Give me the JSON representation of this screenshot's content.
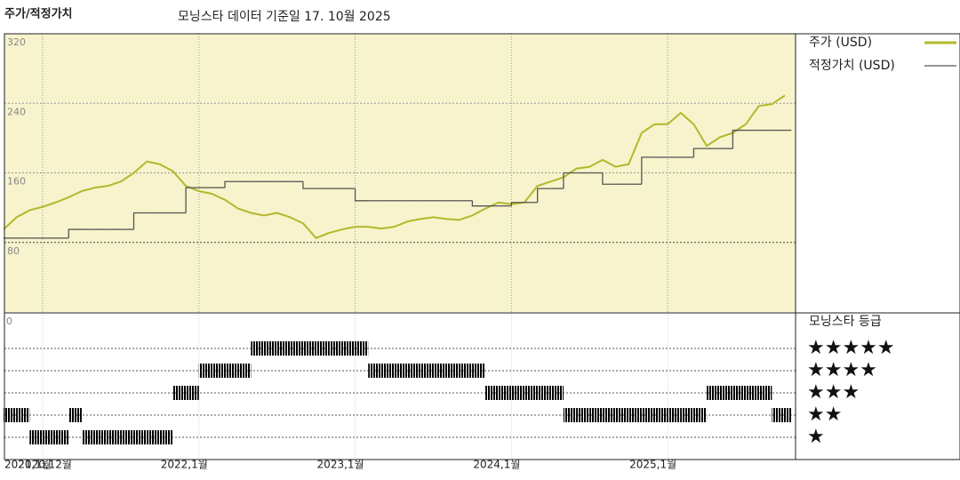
{
  "chart_data": [
    {
      "type": "line",
      "title": "주가/적정가치",
      "subtitle": "모닝스타 데이터 기준일 17. 10월 2025",
      "x": [
        "2020-10",
        "2020-11",
        "2020-12",
        "2021-01",
        "2021-02",
        "2021-03",
        "2021-04",
        "2021-05",
        "2021-06",
        "2021-07",
        "2021-08",
        "2021-09",
        "2021-10",
        "2021-11",
        "2021-12",
        "2022-01",
        "2022-02",
        "2022-03",
        "2022-04",
        "2022-05",
        "2022-06",
        "2022-07",
        "2022-08",
        "2022-09",
        "2022-10",
        "2022-11",
        "2022-12",
        "2023-01",
        "2023-02",
        "2023-03",
        "2023-04",
        "2023-05",
        "2023-06",
        "2023-07",
        "2023-08",
        "2023-09",
        "2023-10",
        "2023-11",
        "2023-12",
        "2024-01",
        "2024-02",
        "2024-03",
        "2024-04",
        "2024-05",
        "2024-06",
        "2024-07",
        "2024-08",
        "2024-09",
        "2024-10",
        "2024-11",
        "2024-12",
        "2025-01",
        "2025-02",
        "2025-03",
        "2025-04",
        "2025-05",
        "2025-06",
        "2025-07",
        "2025-08",
        "2025-09",
        "2025-10"
      ],
      "series": [
        {
          "name": "주가 (USD)",
          "color": "#b3b82c",
          "style": "line",
          "values": [
            95,
            109,
            117,
            121,
            126,
            132,
            139,
            143,
            145,
            150,
            160,
            173,
            170,
            162,
            145,
            139,
            136,
            129,
            119,
            114,
            111,
            114,
            109,
            102,
            85,
            91,
            95,
            98,
            98,
            96,
            98,
            104,
            107,
            109,
            107,
            106,
            111,
            119,
            126,
            124,
            126,
            145,
            150,
            155,
            165,
            167,
            175,
            167,
            170,
            206,
            216,
            216,
            229,
            216,
            191,
            201,
            206,
            216,
            237,
            239,
            249
          ]
        },
        {
          "name": "적정가치 (USD)",
          "color": "#555555",
          "style": "step",
          "values": [
            85,
            85,
            85,
            85,
            85,
            95,
            95,
            95,
            95,
            95,
            114,
            114,
            114,
            114,
            143,
            143,
            143,
            150,
            150,
            150,
            150,
            150,
            150,
            142,
            142,
            142,
            142,
            128,
            128,
            128,
            128,
            128,
            128,
            128,
            128,
            128,
            122,
            122,
            122,
            126,
            126,
            142,
            142,
            160,
            160,
            160,
            147,
            147,
            147,
            178,
            178,
            178,
            178,
            188,
            188,
            188,
            209,
            209,
            209,
            209,
            209
          ]
        }
      ],
      "xlim": [
        "2020-10",
        "2025-10"
      ],
      "xticks": [
        {
          "value": "2020-12",
          "label": "2020,12월"
        },
        {
          "value": "2021-01",
          "label": "2021,1월"
        },
        {
          "value": "2022-01",
          "label": "2022,1월"
        },
        {
          "value": "2023-01",
          "label": "2023,1월"
        },
        {
          "value": "2024-01",
          "label": "2024,1월"
        },
        {
          "value": "2025-01",
          "label": "2025,1월"
        }
      ],
      "ylim": [
        0,
        320
      ],
      "yticks": [
        80,
        160,
        240,
        320
      ],
      "background": "#f7f3cc"
    },
    {
      "type": "rating",
      "title": "모닝스타 등급",
      "corner_label": "0",
      "x": [
        "2020-10",
        "2020-11",
        "2020-12",
        "2021-01",
        "2021-02",
        "2021-03",
        "2021-04",
        "2021-05",
        "2021-06",
        "2021-07",
        "2021-08",
        "2021-09",
        "2021-10",
        "2021-11",
        "2021-12",
        "2022-01",
        "2022-02",
        "2022-03",
        "2022-04",
        "2022-05",
        "2022-06",
        "2022-07",
        "2022-08",
        "2022-09",
        "2022-10",
        "2022-11",
        "2022-12",
        "2023-01",
        "2023-02",
        "2023-03",
        "2023-04",
        "2023-05",
        "2023-06",
        "2023-07",
        "2023-08",
        "2023-09",
        "2023-10",
        "2023-11",
        "2023-12",
        "2024-01",
        "2024-02",
        "2024-03",
        "2024-04",
        "2024-05",
        "2024-06",
        "2024-07",
        "2024-08",
        "2024-09",
        "2024-10",
        "2024-11",
        "2024-12",
        "2025-01",
        "2025-02",
        "2025-03",
        "2025-04",
        "2025-05",
        "2025-06",
        "2025-07",
        "2025-08",
        "2025-09",
        "2025-10"
      ],
      "values": [
        2,
        2,
        1,
        1,
        1,
        2,
        1,
        1,
        1,
        1,
        1,
        1,
        1,
        3,
        3,
        4,
        4,
        4,
        4,
        5,
        5,
        5,
        5,
        5,
        5,
        5,
        5,
        5,
        4,
        4,
        4,
        4,
        4,
        4,
        4,
        4,
        4,
        3,
        3,
        3,
        3,
        3,
        3,
        2,
        2,
        2,
        2,
        2,
        2,
        2,
        2,
        2,
        2,
        2,
        3,
        3,
        3,
        3,
        3,
        2,
        2
      ],
      "ylim": [
        0,
        6.6
      ],
      "yticks": [
        {
          "value": 5,
          "label": "★★★★★"
        },
        {
          "value": 4,
          "label": "★★★★"
        },
        {
          "value": 3,
          "label": "★★★"
        },
        {
          "value": 2,
          "label": "★★"
        },
        {
          "value": 1,
          "label": "★"
        }
      ],
      "color": "#3a3a3a",
      "top_color": "#2f8a68"
    }
  ]
}
